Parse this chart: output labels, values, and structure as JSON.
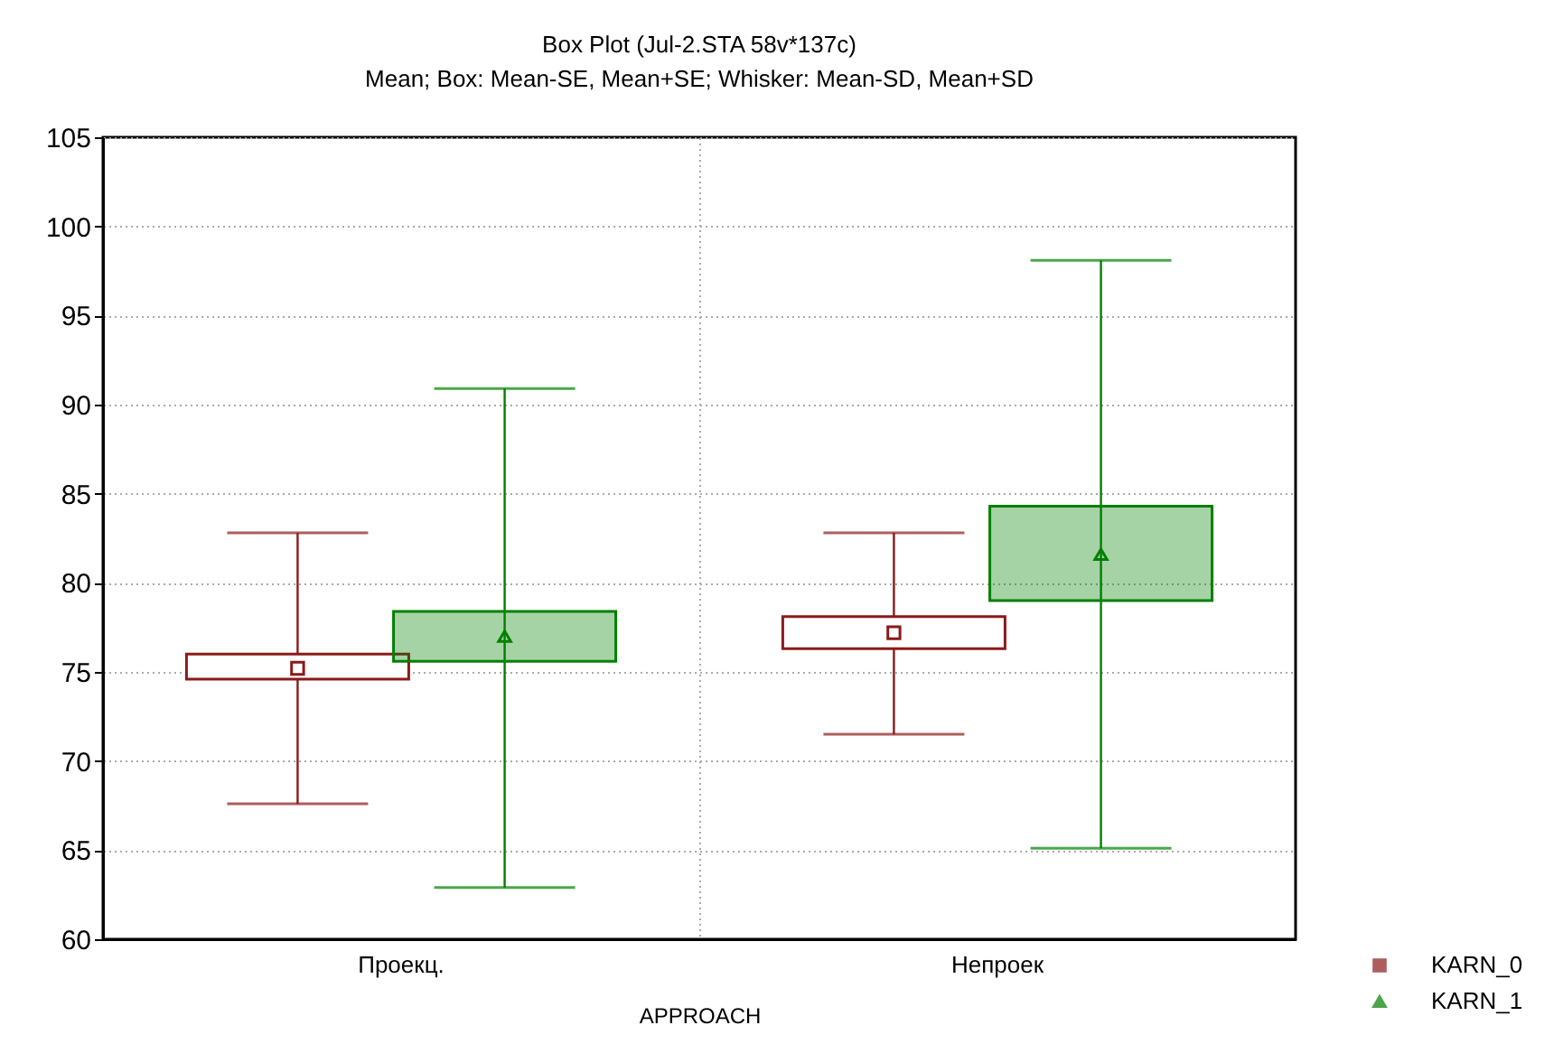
{
  "chart_data": {
    "type": "box",
    "title": "Box Plot (Jul-2.STA 58v*137c)",
    "subtitle": "Mean; Box: Mean-SE, Mean+SE; Whisker: Mean-SD, Mean+SD",
    "xlabel": "APPROACH",
    "categories": [
      "Проекц.",
      "Непроек"
    ],
    "series": [
      {
        "name": "KARN_0",
        "color": "#8b1a1a",
        "marker": "square",
        "boxes": [
          {
            "low": 67.6,
            "q1": 74.6,
            "median": 75.2,
            "q3": 76.0,
            "high": 82.8
          },
          {
            "low": 71.5,
            "q1": 76.3,
            "median": 77.2,
            "q3": 78.1,
            "high": 82.8
          }
        ]
      },
      {
        "name": "KARN_1",
        "color": "#008000",
        "marker": "triangle",
        "boxes": [
          {
            "low": 62.9,
            "q1": 75.6,
            "median": 77.0,
            "q3": 78.4,
            "high": 90.9
          },
          {
            "low": 65.1,
            "q1": 79.0,
            "median": 81.6,
            "q3": 84.3,
            "high": 98.1
          }
        ]
      }
    ],
    "ylim": [
      60,
      105
    ],
    "yticks": [
      60,
      65,
      70,
      75,
      80,
      85,
      90,
      95,
      100,
      105
    ],
    "grid": true,
    "legend": "bottom right"
  }
}
